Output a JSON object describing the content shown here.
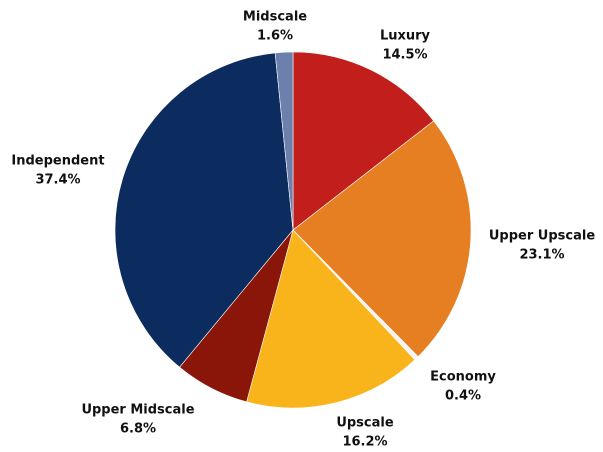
{
  "chart_data": {
    "type": "pie",
    "categories": [
      "Luxury",
      "Upper Upscale",
      "Economy",
      "Upscale",
      "Upper Midscale",
      "Independent",
      "Midscale"
    ],
    "values": [
      14.5,
      23.1,
      0.4,
      16.2,
      6.8,
      37.4,
      1.6
    ],
    "value_labels": [
      "14.5%",
      "23.1%",
      "0.4%",
      "16.2%",
      "6.8%",
      "37.4%",
      "1.6%"
    ],
    "colors": [
      "#c21e1c",
      "#e67e22",
      "#f4f4f4",
      "#f8b41a",
      "#8a1509",
      "#0c2b5e",
      "#6c80ae"
    ]
  }
}
